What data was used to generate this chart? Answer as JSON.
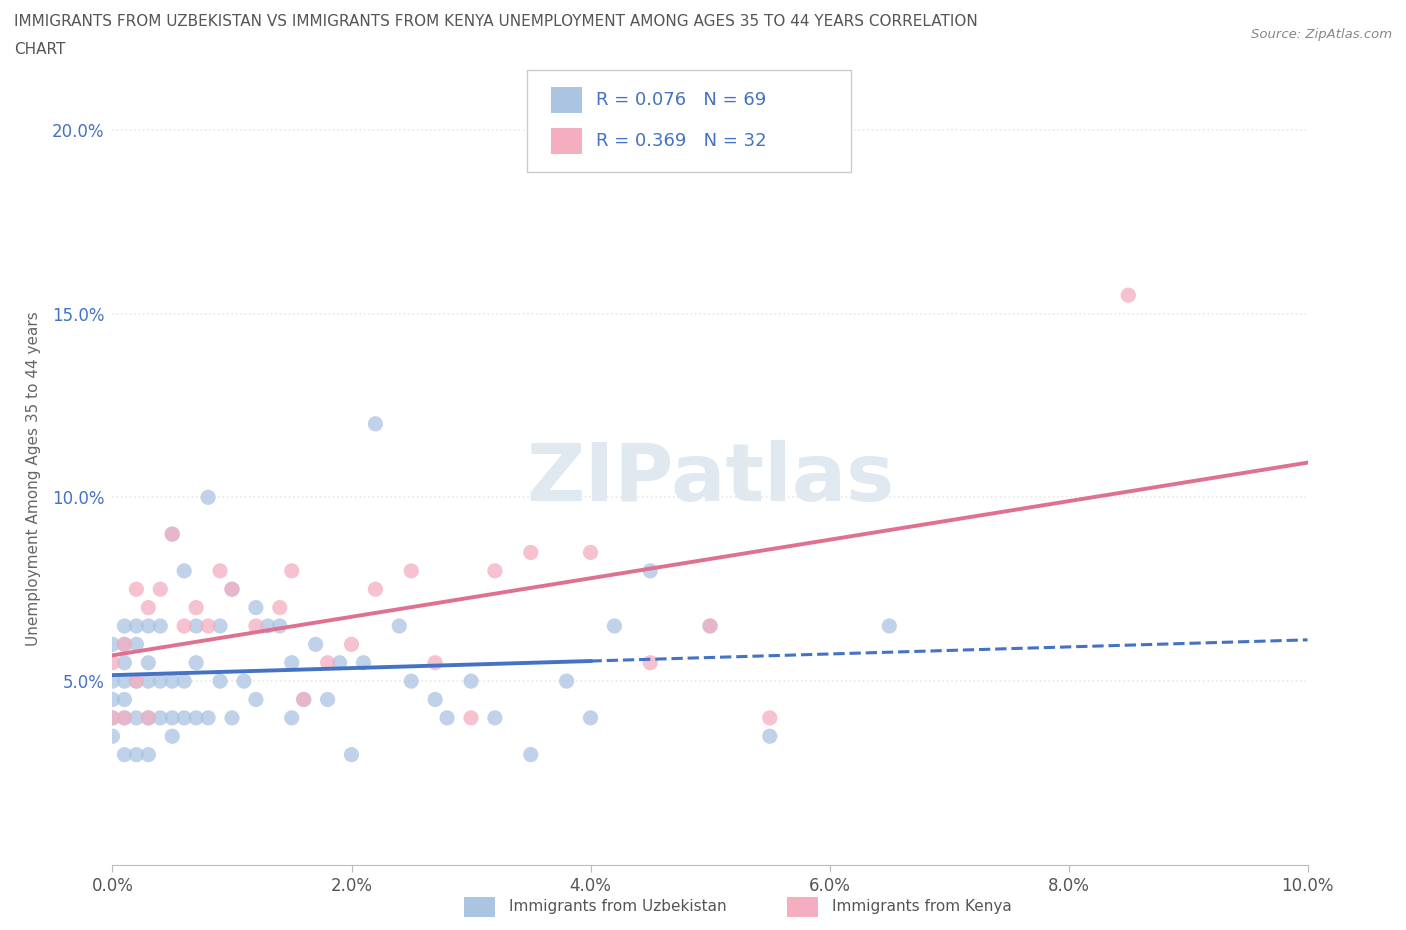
{
  "title_line1": "IMMIGRANTS FROM UZBEKISTAN VS IMMIGRANTS FROM KENYA UNEMPLOYMENT AMONG AGES 35 TO 44 YEARS CORRELATION",
  "title_line2": "CHART",
  "source": "Source: ZipAtlas.com",
  "ylabel": "Unemployment Among Ages 35 to 44 years",
  "xmin": 0.0,
  "xmax": 0.1,
  "ymin": 0.0,
  "ymax": 0.21,
  "xtick_labels": [
    "0.0%",
    "2.0%",
    "4.0%",
    "6.0%",
    "8.0%",
    "10.0%"
  ],
  "xtick_values": [
    0.0,
    0.02,
    0.04,
    0.06,
    0.08,
    0.1
  ],
  "ytick_labels": [
    "5.0%",
    "10.0%",
    "15.0%",
    "20.0%"
  ],
  "ytick_values": [
    0.05,
    0.1,
    0.15,
    0.2
  ],
  "uzbekistan_color": "#aac4e2",
  "kenya_color": "#f4aec0",
  "uzbekistan_line_color": "#4472c4",
  "kenya_line_color": "#e07090",
  "uzbekistan_R": 0.076,
  "uzbekistan_N": 69,
  "kenya_R": 0.369,
  "kenya_N": 32,
  "legend_R_color": "#4472c4",
  "uzbekistan_x": [
    0.0,
    0.0,
    0.0,
    0.0,
    0.0,
    0.001,
    0.001,
    0.001,
    0.001,
    0.001,
    0.001,
    0.001,
    0.002,
    0.002,
    0.002,
    0.002,
    0.002,
    0.003,
    0.003,
    0.003,
    0.003,
    0.003,
    0.004,
    0.004,
    0.004,
    0.005,
    0.005,
    0.005,
    0.005,
    0.006,
    0.006,
    0.006,
    0.007,
    0.007,
    0.007,
    0.008,
    0.008,
    0.009,
    0.009,
    0.01,
    0.01,
    0.011,
    0.012,
    0.012,
    0.013,
    0.014,
    0.015,
    0.015,
    0.016,
    0.017,
    0.018,
    0.019,
    0.02,
    0.021,
    0.022,
    0.024,
    0.025,
    0.027,
    0.028,
    0.03,
    0.032,
    0.035,
    0.038,
    0.04,
    0.042,
    0.045,
    0.05,
    0.055,
    0.065
  ],
  "uzbekistan_y": [
    0.035,
    0.04,
    0.045,
    0.05,
    0.06,
    0.03,
    0.04,
    0.045,
    0.05,
    0.055,
    0.06,
    0.065,
    0.03,
    0.04,
    0.05,
    0.06,
    0.065,
    0.03,
    0.04,
    0.05,
    0.055,
    0.065,
    0.04,
    0.05,
    0.065,
    0.035,
    0.04,
    0.05,
    0.09,
    0.04,
    0.05,
    0.08,
    0.04,
    0.055,
    0.065,
    0.04,
    0.1,
    0.05,
    0.065,
    0.04,
    0.075,
    0.05,
    0.045,
    0.07,
    0.065,
    0.065,
    0.04,
    0.055,
    0.045,
    0.06,
    0.045,
    0.055,
    0.03,
    0.055,
    0.12,
    0.065,
    0.05,
    0.045,
    0.04,
    0.05,
    0.04,
    0.03,
    0.05,
    0.04,
    0.065,
    0.08,
    0.065,
    0.035,
    0.065
  ],
  "kenya_x": [
    0.0,
    0.0,
    0.001,
    0.001,
    0.002,
    0.002,
    0.003,
    0.003,
    0.004,
    0.005,
    0.006,
    0.007,
    0.008,
    0.009,
    0.01,
    0.012,
    0.014,
    0.015,
    0.016,
    0.018,
    0.02,
    0.022,
    0.025,
    0.027,
    0.03,
    0.032,
    0.035,
    0.04,
    0.045,
    0.05,
    0.055,
    0.085
  ],
  "kenya_y": [
    0.04,
    0.055,
    0.04,
    0.06,
    0.05,
    0.075,
    0.04,
    0.07,
    0.075,
    0.09,
    0.065,
    0.07,
    0.065,
    0.08,
    0.075,
    0.065,
    0.07,
    0.08,
    0.045,
    0.055,
    0.06,
    0.075,
    0.08,
    0.055,
    0.04,
    0.08,
    0.085,
    0.085,
    0.055,
    0.065,
    0.04,
    0.155
  ],
  "background_color": "#ffffff",
  "watermark": "ZIPatlas",
  "grid_color": "#e8e8e8",
  "grid_style": ":"
}
